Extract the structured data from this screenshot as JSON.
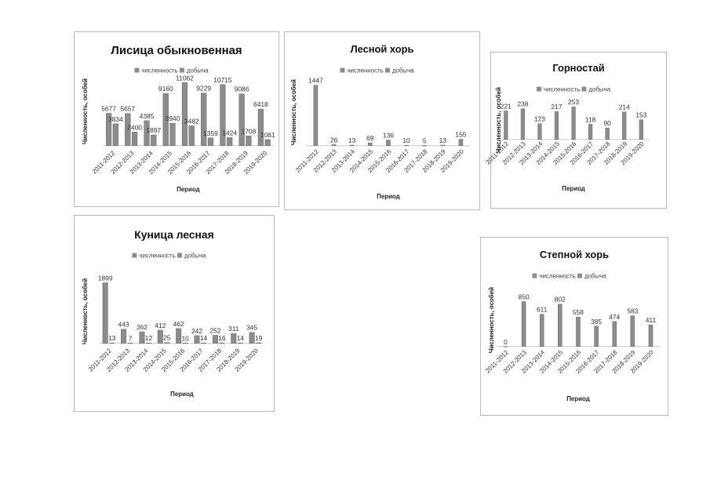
{
  "colors": {
    "series_fill": "#8c8c8c",
    "series_stroke": "#5a5a5a",
    "baseline": "#c8c8c8",
    "panel_border": "#b8b8b8"
  },
  "chart_data": [
    {
      "id": "fox",
      "type": "bar",
      "title": "Лисица обыкновенная",
      "xlabel": "Период",
      "ylabel": "Численность, особей",
      "legend": [
        "численность",
        "добыча"
      ],
      "legend_position": "top",
      "categories": [
        "2011-2012",
        "2012-2013",
        "2013-2014",
        "2014-2015",
        "2015-2016",
        "2016-2017",
        "2017-2018",
        "2018-2019",
        "2019-2020"
      ],
      "series": [
        {
          "name": "численность",
          "values": [
            5677,
            5657,
            4385,
            9160,
            11062,
            9229,
            10715,
            9086,
            6418
          ]
        },
        {
          "name": "добыча",
          "values": [
            3834,
            2400,
            1897,
            3940,
            3482,
            1359,
            1424,
            1708,
            1081
          ]
        }
      ],
      "ylim": [
        0,
        12000
      ]
    },
    {
      "id": "polecat",
      "type": "bar",
      "title": "Лесной хорь",
      "xlabel": "Период",
      "ylabel": "Численность, особей",
      "legend": [
        "численность",
        "добыча"
      ],
      "legend_position": "top",
      "categories": [
        "2011-2012",
        "2012-2013",
        "2013-2014",
        "2014-2015",
        "2015-2016",
        "2016-2017",
        "2017-2018",
        "2018-2019",
        "2019-2020"
      ],
      "series": [
        {
          "name": "численность",
          "values": [
            1447,
            26,
            13,
            69,
            136,
            10,
            5,
            13,
            155
          ]
        }
      ],
      "ylim": [
        0,
        1600
      ]
    },
    {
      "id": "ermine",
      "type": "bar",
      "title": "Горностай",
      "xlabel": "Период",
      "ylabel": "Численность, особей",
      "legend": [
        "численность",
        "добыча"
      ],
      "legend_position": "top",
      "categories": [
        "2011-2012",
        "2012-2013",
        "2013-2014",
        "2014-2015",
        "2015-2016",
        "2016-2017",
        "2017-2018",
        "2018-2019",
        "2019-2020"
      ],
      "series": [
        {
          "name": "численность",
          "values": [
            221,
            238,
            123,
            217,
            253,
            118,
            90,
            214,
            153
          ]
        }
      ],
      "ylim": [
        0,
        300
      ]
    },
    {
      "id": "marten",
      "type": "bar",
      "title": "Куница лесная",
      "xlabel": "Период",
      "ylabel": "Численность, особей",
      "legend": [
        "численность",
        "добыча"
      ],
      "legend_position": "top",
      "categories": [
        "2011-2012",
        "2012-2013",
        "2013-2014",
        "2014-2015",
        "2015-2016",
        "2016-2017",
        "2017-2018",
        "2018-2019",
        "2019-2020"
      ],
      "series": [
        {
          "name": "численность",
          "values": [
            1899,
            443,
            362,
            412,
            462,
            242,
            252,
            311,
            345
          ]
        },
        {
          "name": "добыча",
          "values": [
            13,
            7,
            12,
            25,
            10,
            14,
            16,
            14,
            19
          ]
        }
      ],
      "ylim": [
        0,
        2000
      ]
    },
    {
      "id": "steppe",
      "type": "bar",
      "title": "Степной хорь",
      "xlabel": "Период",
      "ylabel": "Численность, особей",
      "legend": [
        "численность",
        "добыча"
      ],
      "legend_position": "top",
      "categories": [
        "2011-2012",
        "2012-2013",
        "2013-2014",
        "2014-2015",
        "2015-2016",
        "2016-2017",
        "2017-2018",
        "2018-2019",
        "2019-2020"
      ],
      "series": [
        {
          "name": "численность",
          "values": [
            0,
            850,
            611,
            802,
            558,
            385,
            474,
            583,
            411
          ]
        }
      ],
      "ylim": [
        0,
        1000
      ]
    }
  ]
}
